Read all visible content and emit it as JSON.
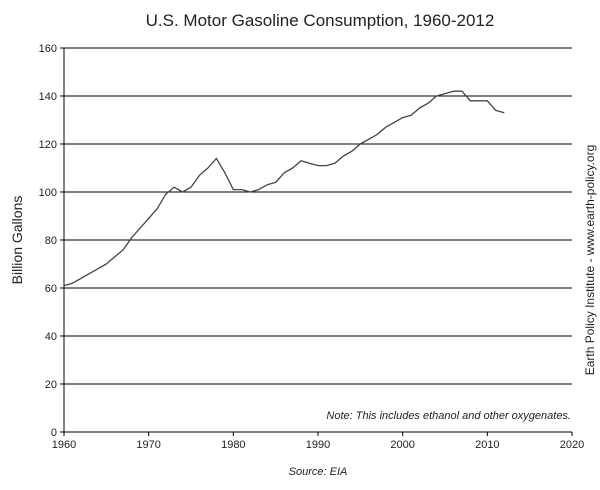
{
  "chart_data": {
    "type": "line",
    "title": "U.S. Motor Gasoline Consumption, 1960-2012",
    "xlabel": "",
    "ylabel": "Billion Gallons",
    "xlim": [
      1960,
      2020
    ],
    "ylim": [
      0,
      160
    ],
    "x_ticks": [
      1960,
      1970,
      1980,
      1990,
      2000,
      2010,
      2020
    ],
    "y_ticks": [
      0,
      20,
      40,
      60,
      80,
      100,
      120,
      140,
      160
    ],
    "grid": "horizontal",
    "note": "Note: This includes ethanol and other oxygenates.",
    "source": "Source: EIA",
    "credit": "Earth Policy Institute - www.earth-policy.org",
    "line_color": "#444444",
    "series": [
      {
        "x": [
          1960,
          1961,
          1962,
          1963,
          1964,
          1965,
          1966,
          1967,
          1968,
          1969,
          1970,
          1971,
          1972,
          1973,
          1974,
          1975,
          1976,
          1977,
          1978,
          1979,
          1980,
          1981,
          1982,
          1983,
          1984,
          1985,
          1986,
          1987,
          1988,
          1989,
          1990,
          1991,
          1992,
          1993,
          1994,
          1995,
          1996,
          1997,
          1998,
          1999,
          2000,
          2001,
          2002,
          2003,
          2004,
          2005,
          2006,
          2007,
          2008,
          2009,
          2010,
          2011,
          2012
        ],
        "values": [
          61,
          62,
          64,
          66,
          68,
          70,
          73,
          76,
          81,
          85,
          89,
          93,
          99,
          102,
          100,
          102,
          107,
          110,
          114,
          108,
          101,
          101,
          100,
          101,
          103,
          104,
          108,
          110,
          113,
          112,
          111,
          111,
          112,
          115,
          117,
          120,
          122,
          124,
          127,
          129,
          131,
          132,
          135,
          137,
          140,
          141,
          142,
          142,
          138,
          138,
          138,
          134,
          133
        ]
      }
    ]
  }
}
